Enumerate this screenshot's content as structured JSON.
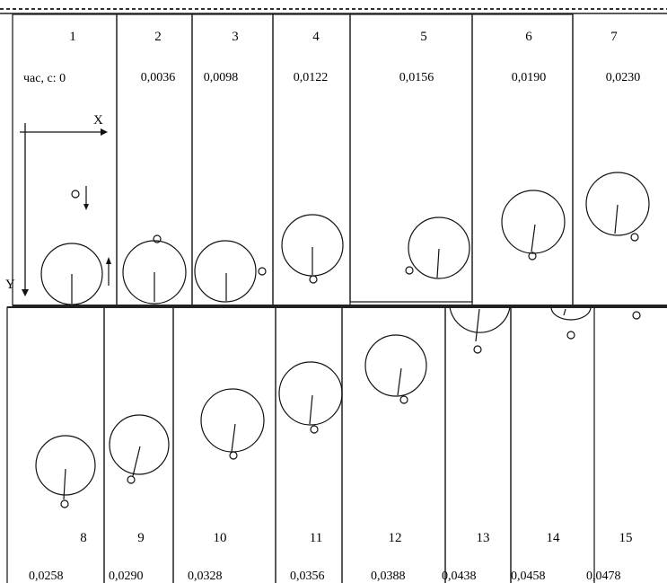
{
  "axes": {
    "x_label": "X",
    "y_label": "Y"
  },
  "time_prefix": "час, с: ",
  "top_row": [
    {
      "num": "1",
      "time": "0"
    },
    {
      "num": "2",
      "time": "0,0036"
    },
    {
      "num": "3",
      "time": "0,0098"
    },
    {
      "num": "4",
      "time": "0,0122"
    },
    {
      "num": "5",
      "time": "0,0156"
    },
    {
      "num": "6",
      "time": "0,0190"
    },
    {
      "num": "7",
      "time": "0,0230"
    }
  ],
  "bottom_row": [
    {
      "num": "8",
      "time": "0,0258"
    },
    {
      "num": "9",
      "time": "0,0290"
    },
    {
      "num": "10",
      "time": "0,0328"
    },
    {
      "num": "11",
      "time": "0,0356"
    },
    {
      "num": "12",
      "time": "0,0388"
    },
    {
      "num": "13",
      "time": "0,0438"
    },
    {
      "num": "14",
      "time": "0,0458"
    },
    {
      "num": "15",
      "time": "0,0478"
    }
  ]
}
